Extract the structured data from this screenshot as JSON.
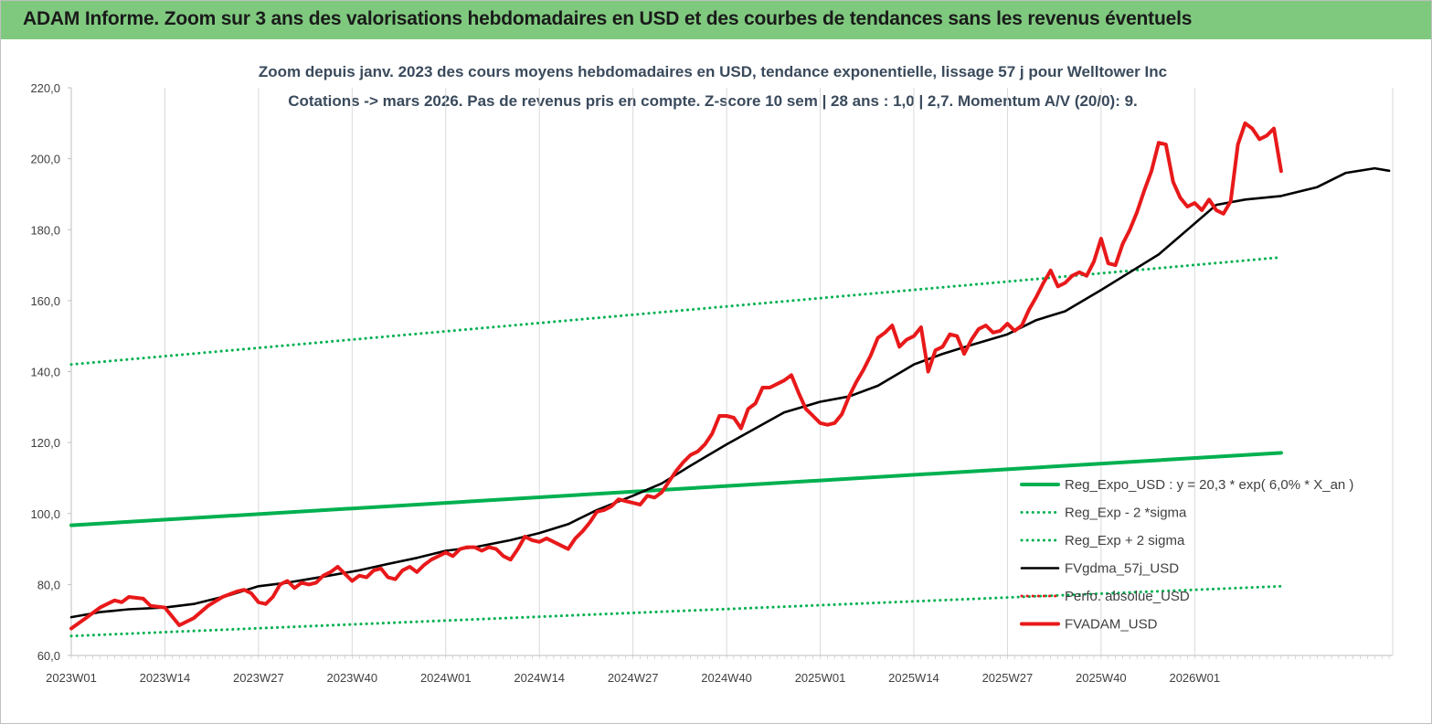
{
  "banner": {
    "title": "ADAM Informe. Zoom sur 3 ans des valorisations hebdomadaires en USD et des courbes de tendances sans les revenus éventuels"
  },
  "colors": {
    "banner_bg": "#7fc97f",
    "reg": "#00b050",
    "fvgdma": "#000000",
    "fvadam": "#e8191a",
    "perfo": "#e8191a"
  },
  "chart_data": {
    "type": "line",
    "title": "Zoom depuis janv. 2023 des cours moyens hebdomadaires en USD, tendance exponentielle, lissage 57 j pour Welltower Inc",
    "subtitle": "Cotations -> mars 2026. Pas de revenus pris en compte. Z-score 10 sem | 28 ans : 1,0 | 2,7. Momentum A/V (20/0): 9.",
    "xlabel": "",
    "ylabel": "",
    "ylim": [
      60,
      220
    ],
    "y_ticks": [
      "60,0",
      "80,0",
      "100,0",
      "120,0",
      "140,0",
      "160,0",
      "180,0",
      "200,0",
      "220,0"
    ],
    "x_ticks": [
      "2023W01",
      "2023W14",
      "2023W27",
      "2023W40",
      "2024W01",
      "2024W14",
      "2024W27",
      "2024W40",
      "2025W01",
      "2025W14",
      "2025W27",
      "2025W40",
      "2026W01"
    ],
    "x_range_weeks": [
      0,
      168
    ],
    "grid": "vertical",
    "legend_position": "bottom-right",
    "series": [
      {
        "name": "Reg_Expo_USD : y = 20,3 * exp( 6,0% *  X_an )",
        "style": "solid-thick",
        "color": "#00b050",
        "points": [
          [
            0,
            96.7
          ],
          [
            168,
            117.1
          ]
        ]
      },
      {
        "name": "Reg_Exp - 2 *sigma",
        "style": "dotted",
        "color": "#00b050",
        "points": [
          [
            0,
            65.5
          ],
          [
            168,
            79.5
          ]
        ]
      },
      {
        "name": "Reg_Exp + 2 sigma",
        "style": "dotted",
        "color": "#00b050",
        "points": [
          [
            0,
            142.0
          ],
          [
            168,
            172.2
          ]
        ]
      },
      {
        "name": "FVgdma_57j_USD",
        "style": "solid",
        "color": "#000000",
        "points": [
          [
            0,
            70.8
          ],
          [
            4,
            72.2
          ],
          [
            8,
            73.0
          ],
          [
            13,
            73.5
          ],
          [
            17,
            74.5
          ],
          [
            22,
            77.0
          ],
          [
            26,
            79.5
          ],
          [
            30,
            80.5
          ],
          [
            35,
            82.2
          ],
          [
            40,
            84.0
          ],
          [
            44,
            85.8
          ],
          [
            48,
            87.5
          ],
          [
            52,
            89.5
          ],
          [
            56,
            90.5
          ],
          [
            61,
            92.5
          ],
          [
            65,
            94.5
          ],
          [
            69,
            97.0
          ],
          [
            73,
            101.0
          ],
          [
            78,
            105.0
          ],
          [
            82,
            108.5
          ],
          [
            86,
            113.5
          ],
          [
            91,
            119.5
          ],
          [
            95,
            124.0
          ],
          [
            99,
            128.5
          ],
          [
            104,
            131.5
          ],
          [
            108,
            133.0
          ],
          [
            112,
            136.0
          ],
          [
            117,
            142.0
          ],
          [
            121,
            145.0
          ],
          [
            125,
            147.5
          ],
          [
            130,
            150.5
          ],
          [
            134,
            154.5
          ],
          [
            138,
            157.0
          ],
          [
            143,
            163.0
          ],
          [
            147,
            168.0
          ],
          [
            151,
            173.0
          ],
          [
            155,
            180.0
          ],
          [
            159,
            187.0
          ],
          [
            163,
            188.5
          ],
          [
            168,
            189.5
          ],
          [
            173,
            192.0
          ],
          [
            177,
            196.0
          ],
          [
            181,
            197.3
          ],
          [
            183,
            196.6
          ]
        ]
      },
      {
        "name": "Perfo. absolue_USD",
        "style": "dotted",
        "color": "#e8191a",
        "points": []
      },
      {
        "name": "FVADAM_USD",
        "style": "solid-thick",
        "color": "#e8191a",
        "points": [
          [
            0,
            67.6
          ],
          [
            2,
            70.5
          ],
          [
            4,
            73.5
          ],
          [
            6,
            75.5
          ],
          [
            7,
            75.0
          ],
          [
            8,
            76.5
          ],
          [
            10,
            76.0
          ],
          [
            11,
            74.0
          ],
          [
            13,
            73.5
          ],
          [
            14,
            71.0
          ],
          [
            15,
            68.5
          ],
          [
            17,
            70.5
          ],
          [
            19,
            74.0
          ],
          [
            21,
            76.5
          ],
          [
            23,
            78.0
          ],
          [
            24,
            78.5
          ],
          [
            25,
            77.5
          ],
          [
            26,
            75.0
          ],
          [
            27,
            74.5
          ],
          [
            28,
            76.5
          ],
          [
            29,
            80.0
          ],
          [
            30,
            81.0
          ],
          [
            31,
            79.0
          ],
          [
            32,
            80.5
          ],
          [
            33,
            80.0
          ],
          [
            34,
            80.5
          ],
          [
            35,
            82.5
          ],
          [
            36,
            83.5
          ],
          [
            37,
            85.0
          ],
          [
            38,
            83.0
          ],
          [
            39,
            81.0
          ],
          [
            40,
            82.5
          ],
          [
            41,
            82.0
          ],
          [
            42,
            84.0
          ],
          [
            43,
            84.5
          ],
          [
            44,
            82.0
          ],
          [
            45,
            81.5
          ],
          [
            46,
            84.0
          ],
          [
            47,
            85.0
          ],
          [
            48,
            83.5
          ],
          [
            49,
            85.5
          ],
          [
            50,
            87.0
          ],
          [
            51,
            88.0
          ],
          [
            52,
            89.0
          ],
          [
            53,
            88.0
          ],
          [
            54,
            90.0
          ],
          [
            55,
            90.5
          ],
          [
            56,
            90.5
          ],
          [
            57,
            89.5
          ],
          [
            58,
            90.5
          ],
          [
            59,
            90.0
          ],
          [
            60,
            88.0
          ],
          [
            61,
            87.0
          ],
          [
            62,
            90.0
          ],
          [
            63,
            93.5
          ],
          [
            64,
            92.5
          ],
          [
            65,
            92.0
          ],
          [
            66,
            93.0
          ],
          [
            67,
            92.0
          ],
          [
            68,
            91.0
          ],
          [
            69,
            90.0
          ],
          [
            70,
            93.0
          ],
          [
            71,
            95.0
          ],
          [
            72,
            97.5
          ],
          [
            73,
            100.5
          ],
          [
            74,
            101.0
          ],
          [
            75,
            102.0
          ],
          [
            76,
            104.0
          ],
          [
            77,
            103.5
          ],
          [
            78,
            103.0
          ],
          [
            79,
            102.5
          ],
          [
            80,
            105.0
          ],
          [
            81,
            104.5
          ],
          [
            82,
            106.0
          ],
          [
            83,
            109.0
          ],
          [
            84,
            112.0
          ],
          [
            85,
            114.5
          ],
          [
            86,
            116.5
          ],
          [
            87,
            117.5
          ],
          [
            88,
            119.5
          ],
          [
            89,
            122.5
          ],
          [
            90,
            127.5
          ],
          [
            91,
            127.5
          ],
          [
            92,
            127.0
          ],
          [
            93,
            124.0
          ],
          [
            94,
            129.5
          ],
          [
            95,
            131.0
          ],
          [
            96,
            135.5
          ],
          [
            97,
            135.5
          ],
          [
            98,
            136.5
          ],
          [
            99,
            137.5
          ],
          [
            100,
            139.0
          ],
          [
            101,
            134.0
          ],
          [
            102,
            129.5
          ],
          [
            103,
            127.5
          ],
          [
            104,
            125.5
          ],
          [
            105,
            125.0
          ],
          [
            106,
            125.5
          ],
          [
            107,
            128.0
          ],
          [
            108,
            133.0
          ],
          [
            109,
            137.0
          ],
          [
            110,
            140.5
          ],
          [
            111,
            144.5
          ],
          [
            112,
            149.5
          ],
          [
            113,
            151.0
          ],
          [
            114,
            153.0
          ],
          [
            115,
            147.0
          ],
          [
            116,
            149.0
          ],
          [
            117,
            150.0
          ],
          [
            118,
            152.5
          ],
          [
            119,
            140.0
          ],
          [
            120,
            146.0
          ],
          [
            121,
            147.0
          ],
          [
            122,
            150.5
          ],
          [
            123,
            150.0
          ],
          [
            124,
            145.0
          ],
          [
            125,
            149.0
          ],
          [
            126,
            152.0
          ],
          [
            127,
            153.0
          ],
          [
            128,
            151.0
          ],
          [
            129,
            151.5
          ],
          [
            130,
            153.5
          ],
          [
            131,
            151.5
          ],
          [
            132,
            153.0
          ],
          [
            133,
            157.5
          ],
          [
            134,
            161.0
          ],
          [
            135,
            165.0
          ],
          [
            136,
            168.5
          ],
          [
            137,
            164.0
          ],
          [
            138,
            165.0
          ],
          [
            139,
            167.0
          ],
          [
            140,
            168.0
          ],
          [
            141,
            167.0
          ],
          [
            142,
            171.0
          ],
          [
            143,
            177.5
          ],
          [
            144,
            170.5
          ],
          [
            145,
            170.0
          ],
          [
            146,
            176.0
          ],
          [
            147,
            180.0
          ],
          [
            148,
            185.0
          ],
          [
            149,
            191.0
          ],
          [
            150,
            196.5
          ],
          [
            151,
            204.5
          ],
          [
            152,
            204.0
          ],
          [
            153,
            193.5
          ],
          [
            154,
            189.0
          ],
          [
            155,
            186.5
          ],
          [
            156,
            187.5
          ],
          [
            157,
            185.5
          ],
          [
            158,
            188.5
          ],
          [
            159,
            185.5
          ],
          [
            160,
            184.5
          ],
          [
            161,
            188.0
          ],
          [
            162,
            204.0
          ],
          [
            163,
            210.0
          ],
          [
            164,
            208.5
          ],
          [
            165,
            205.5
          ],
          [
            166,
            206.5
          ],
          [
            167,
            208.5
          ],
          [
            168,
            196.5
          ]
        ]
      }
    ]
  }
}
